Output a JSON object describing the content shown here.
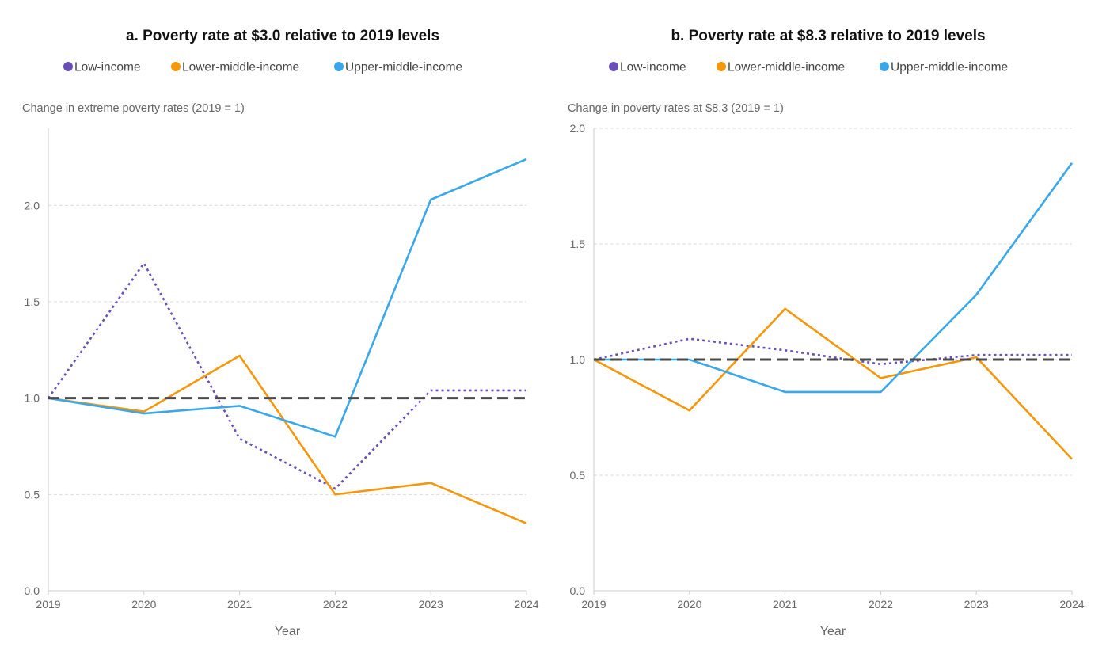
{
  "chart_data": [
    {
      "type": "line",
      "title": "a. Poverty rate at $3.0 relative to 2019 levels",
      "ylabel": "Change in extreme poverty rates (2019 = 1)",
      "xlabel": "Year",
      "x": [
        "2019",
        "2020",
        "2021",
        "2022",
        "2023",
        "2024"
      ],
      "ylim": [
        0,
        2.4
      ],
      "yticks": [
        "0.0",
        "0.5",
        "1.0",
        "1.5",
        "2.0"
      ],
      "grid": true,
      "legend_position": "top-left",
      "reference_line": 1.0,
      "series": [
        {
          "name": "Low-income",
          "color": "#6a4fb8",
          "style": "dotted",
          "values": [
            1.0,
            1.7,
            0.79,
            0.53,
            1.04,
            1.04
          ]
        },
        {
          "name": "Lower-middle-income",
          "color": "#f5970b",
          "style": "solid",
          "values": [
            1.0,
            0.93,
            1.22,
            0.5,
            0.56,
            0.35
          ]
        },
        {
          "name": "Upper-middle-income",
          "color": "#3aa8e8",
          "style": "solid",
          "values": [
            1.0,
            0.92,
            0.96,
            0.8,
            2.03,
            2.24
          ]
        }
      ]
    },
    {
      "type": "line",
      "title": "b. Poverty rate at $8.3 relative to 2019 levels",
      "ylabel": "Change in poverty rates at $8.3 (2019 = 1)",
      "xlabel": "Year",
      "x": [
        "2019",
        "2020",
        "2021",
        "2022",
        "2023",
        "2024"
      ],
      "ylim": [
        0,
        2.0
      ],
      "yticks": [
        "0.0",
        "0.5",
        "1.0",
        "1.5",
        "2.0"
      ],
      "grid": true,
      "legend_position": "top-left",
      "reference_line": 1.0,
      "series": [
        {
          "name": "Low-income",
          "color": "#6a4fb8",
          "style": "dotted",
          "values": [
            1.0,
            1.09,
            1.04,
            0.98,
            1.02,
            1.02
          ]
        },
        {
          "name": "Lower-middle-income",
          "color": "#f5970b",
          "style": "solid",
          "values": [
            1.0,
            0.78,
            1.22,
            0.92,
            1.01,
            0.57
          ]
        },
        {
          "name": "Upper-middle-income",
          "color": "#3aa8e8",
          "style": "solid",
          "values": [
            1.0,
            1.0,
            0.86,
            0.86,
            1.28,
            1.85
          ]
        }
      ]
    }
  ]
}
